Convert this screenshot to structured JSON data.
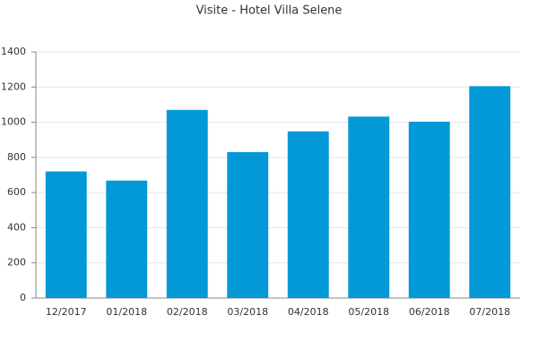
{
  "chart_data": {
    "type": "bar",
    "title": "Visite - Hotel Villa Selene",
    "categories": [
      "12/2017",
      "01/2018",
      "02/2018",
      "03/2018",
      "04/2018",
      "05/2018",
      "06/2018",
      "07/2018"
    ],
    "values": [
      720,
      668,
      1070,
      830,
      948,
      1032,
      1003,
      1205
    ],
    "color": "#0299d6",
    "ylim": [
      0,
      1400
    ],
    "yticks": [
      0,
      200,
      400,
      600,
      800,
      1000,
      1200,
      1400
    ],
    "grid": true
  }
}
